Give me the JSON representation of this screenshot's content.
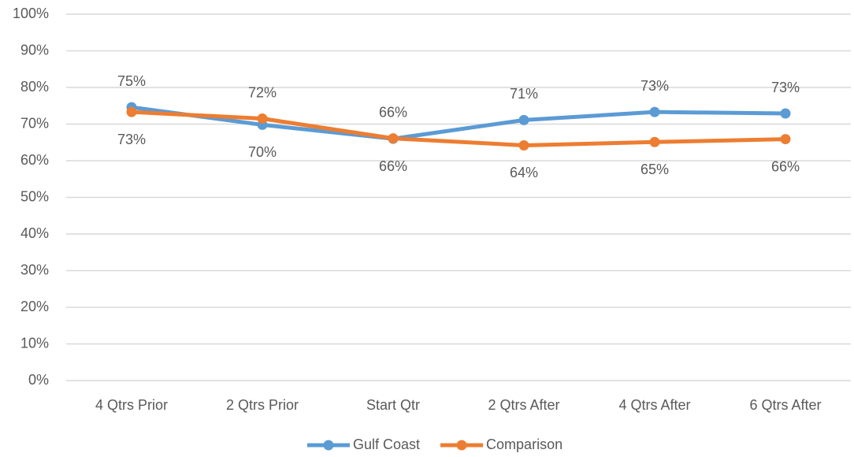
{
  "chart_data": {
    "type": "line",
    "categories": [
      "4 Qtrs Prior",
      "2 Qtrs Prior",
      "Start Qtr",
      "2 Qtrs After",
      "4 Qtrs After",
      "6 Qtrs After"
    ],
    "series": [
      {
        "name": "Gulf Coast",
        "color": "#5b9bd5",
        "values": [
          74.6,
          69.8,
          66.0,
          71.1,
          73.3,
          72.9
        ],
        "value_labels": [
          "75%",
          "70%",
          "66%",
          "71%",
          "73%",
          "73%"
        ]
      },
      {
        "name": "Comparison",
        "color": "#ed7d31",
        "values": [
          73.3,
          71.5,
          66.1,
          64.2,
          65.1,
          65.9
        ],
        "value_labels": [
          "73%",
          "72%",
          "66%",
          "64%",
          "65%",
          "66%"
        ]
      }
    ],
    "ylim": [
      0,
      100
    ],
    "yticks": [
      {
        "value": 0,
        "label": "0%"
      },
      {
        "value": 10,
        "label": "10%"
      },
      {
        "value": 20,
        "label": "20%"
      },
      {
        "value": 30,
        "label": "30%"
      },
      {
        "value": 40,
        "label": "40%"
      },
      {
        "value": 50,
        "label": "50%"
      },
      {
        "value": 60,
        "label": "60%"
      },
      {
        "value": 70,
        "label": "70%"
      },
      {
        "value": 80,
        "label": "80%"
      },
      {
        "value": 90,
        "label": "90%"
      },
      {
        "value": 100,
        "label": "100%"
      }
    ],
    "grid": true,
    "legend": "bottom"
  }
}
